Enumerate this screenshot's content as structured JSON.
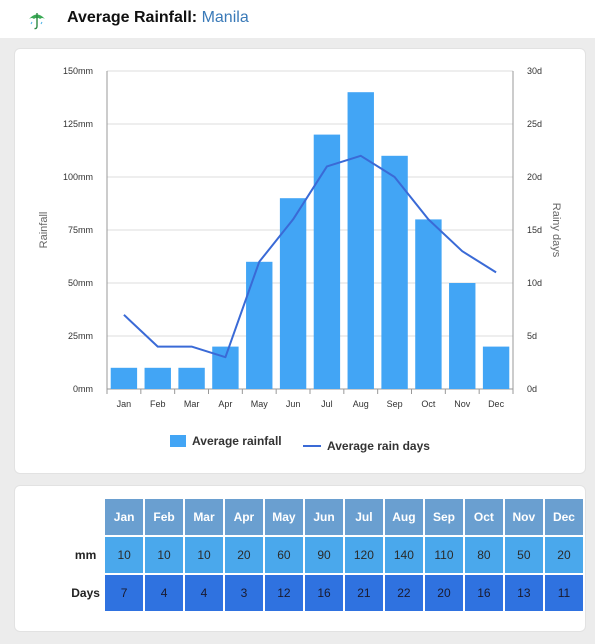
{
  "header": {
    "title": "Average Rainfall:",
    "city": "Manila",
    "icon": "umbrella-icon"
  },
  "colors": {
    "bars": "#42a5f5",
    "line": "#3a6ad6",
    "mm_row": "#4aa8ec",
    "days_row": "#2f72e0",
    "month_header": "#6a9fd0",
    "city_link": "#3a7ab8"
  },
  "chart_data": {
    "type": "bar",
    "categories": [
      "Jan",
      "Feb",
      "Mar",
      "Apr",
      "May",
      "Jun",
      "Jul",
      "Aug",
      "Sep",
      "Oct",
      "Nov",
      "Dec"
    ],
    "series": [
      {
        "name": "Average rainfall",
        "type": "bar",
        "axis": "left",
        "values": [
          10,
          10,
          10,
          20,
          60,
          90,
          120,
          140,
          110,
          80,
          50,
          20
        ]
      },
      {
        "name": "Average rain days",
        "type": "line",
        "axis": "right",
        "values": [
          7,
          4,
          4,
          3,
          12,
          16,
          21,
          22,
          20,
          16,
          13,
          11
        ]
      }
    ],
    "ylabel": "Rainfall",
    "y2label": "Rainy days",
    "ylim": [
      0,
      150
    ],
    "y2lim": [
      0,
      30
    ],
    "yticks": [
      "0mm",
      "25mm",
      "50mm",
      "75mm",
      "100mm",
      "125mm",
      "150mm"
    ],
    "y2ticks": [
      "0d",
      "5d",
      "10d",
      "15d",
      "20d",
      "25d",
      "30d"
    ],
    "grid": true,
    "legend": "bottom"
  },
  "table": {
    "mm_label": "mm",
    "days_label": "Days",
    "months": [
      "Jan",
      "Feb",
      "Mar",
      "Apr",
      "May",
      "Jun",
      "Jul",
      "Aug",
      "Sep",
      "Oct",
      "Nov",
      "Dec"
    ],
    "mm": [
      "10",
      "10",
      "10",
      "20",
      "60",
      "90",
      "120",
      "140",
      "110",
      "80",
      "50",
      "20"
    ],
    "days": [
      "7",
      "4",
      "4",
      "3",
      "12",
      "16",
      "21",
      "22",
      "20",
      "16",
      "13",
      "11"
    ]
  }
}
